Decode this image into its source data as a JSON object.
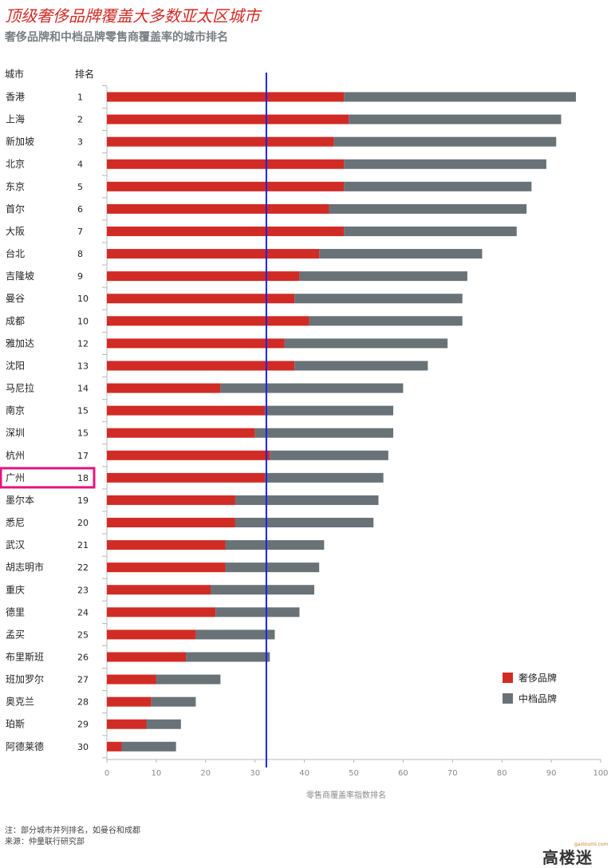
{
  "title": "顶级奢侈品牌覆盖大多数亚太区城市",
  "subtitle": "奢侈品牌和中档品牌零售商覆盖率的城市排名",
  "footnote_1": "注：部分城市并列排名，如曼谷和成都",
  "footnote_2": "来源：仲量联行研究部",
  "logo": {
    "main": "高楼迷",
    "sub": "gaoloumi.com"
  },
  "colors": {
    "luxury": "#d12b25",
    "midrange": "#697277",
    "reference_line": "#1a23e0",
    "highlight_box": "#e6157f"
  },
  "chart_data": {
    "type": "bar",
    "orientation": "horizontal",
    "stacked": true,
    "column_headers": {
      "city": "城市",
      "rank": "排名"
    },
    "categories": [
      "香港",
      "上海",
      "新加坡",
      "北京",
      "东京",
      "首尔",
      "大阪",
      "台北",
      "吉隆坡",
      "曼谷",
      "成都",
      "雅加达",
      "沈阳",
      "马尼拉",
      "南京",
      "深圳",
      "杭州",
      "广州",
      "墨尔本",
      "悉尼",
      "武汉",
      "胡志明市",
      "重庆",
      "德里",
      "孟买",
      "布里斯班",
      "班加罗尔",
      "奥克兰",
      "珀斯",
      "阿德莱德"
    ],
    "ranks": [
      "1",
      "2",
      "3",
      "4",
      "5",
      "6",
      "7",
      "8",
      "9",
      "10",
      "10",
      "12",
      "13",
      "14",
      "15",
      "15",
      "17",
      "18",
      "19",
      "20",
      "21",
      "22",
      "23",
      "24",
      "25",
      "26",
      "27",
      "28",
      "29",
      "30"
    ],
    "series": [
      {
        "name": "奢侈品牌",
        "values": [
          48,
          49,
          46,
          48,
          48,
          45,
          48,
          43,
          39,
          38,
          41,
          36,
          38,
          23,
          32,
          30,
          33,
          32,
          26,
          26,
          24,
          24,
          21,
          22,
          18,
          16,
          10,
          9,
          8,
          3
        ]
      },
      {
        "name": "中档品牌",
        "values": [
          47,
          43,
          45,
          41,
          38,
          40,
          35,
          33,
          34,
          34,
          31,
          33,
          27,
          37,
          26,
          28,
          24,
          24,
          29,
          28,
          20,
          19,
          21,
          17,
          16,
          17,
          13,
          9,
          7,
          11
        ]
      }
    ],
    "xlabel": "零售商覆盖率指数排名",
    "xlim": [
      0,
      100
    ],
    "xticks": [
      0,
      10,
      20,
      30,
      40,
      50,
      60,
      70,
      80,
      90,
      100
    ],
    "reference_line_x": 32.3,
    "highlighted_city": "广州",
    "legend_position": "lower-right",
    "grid": false
  }
}
